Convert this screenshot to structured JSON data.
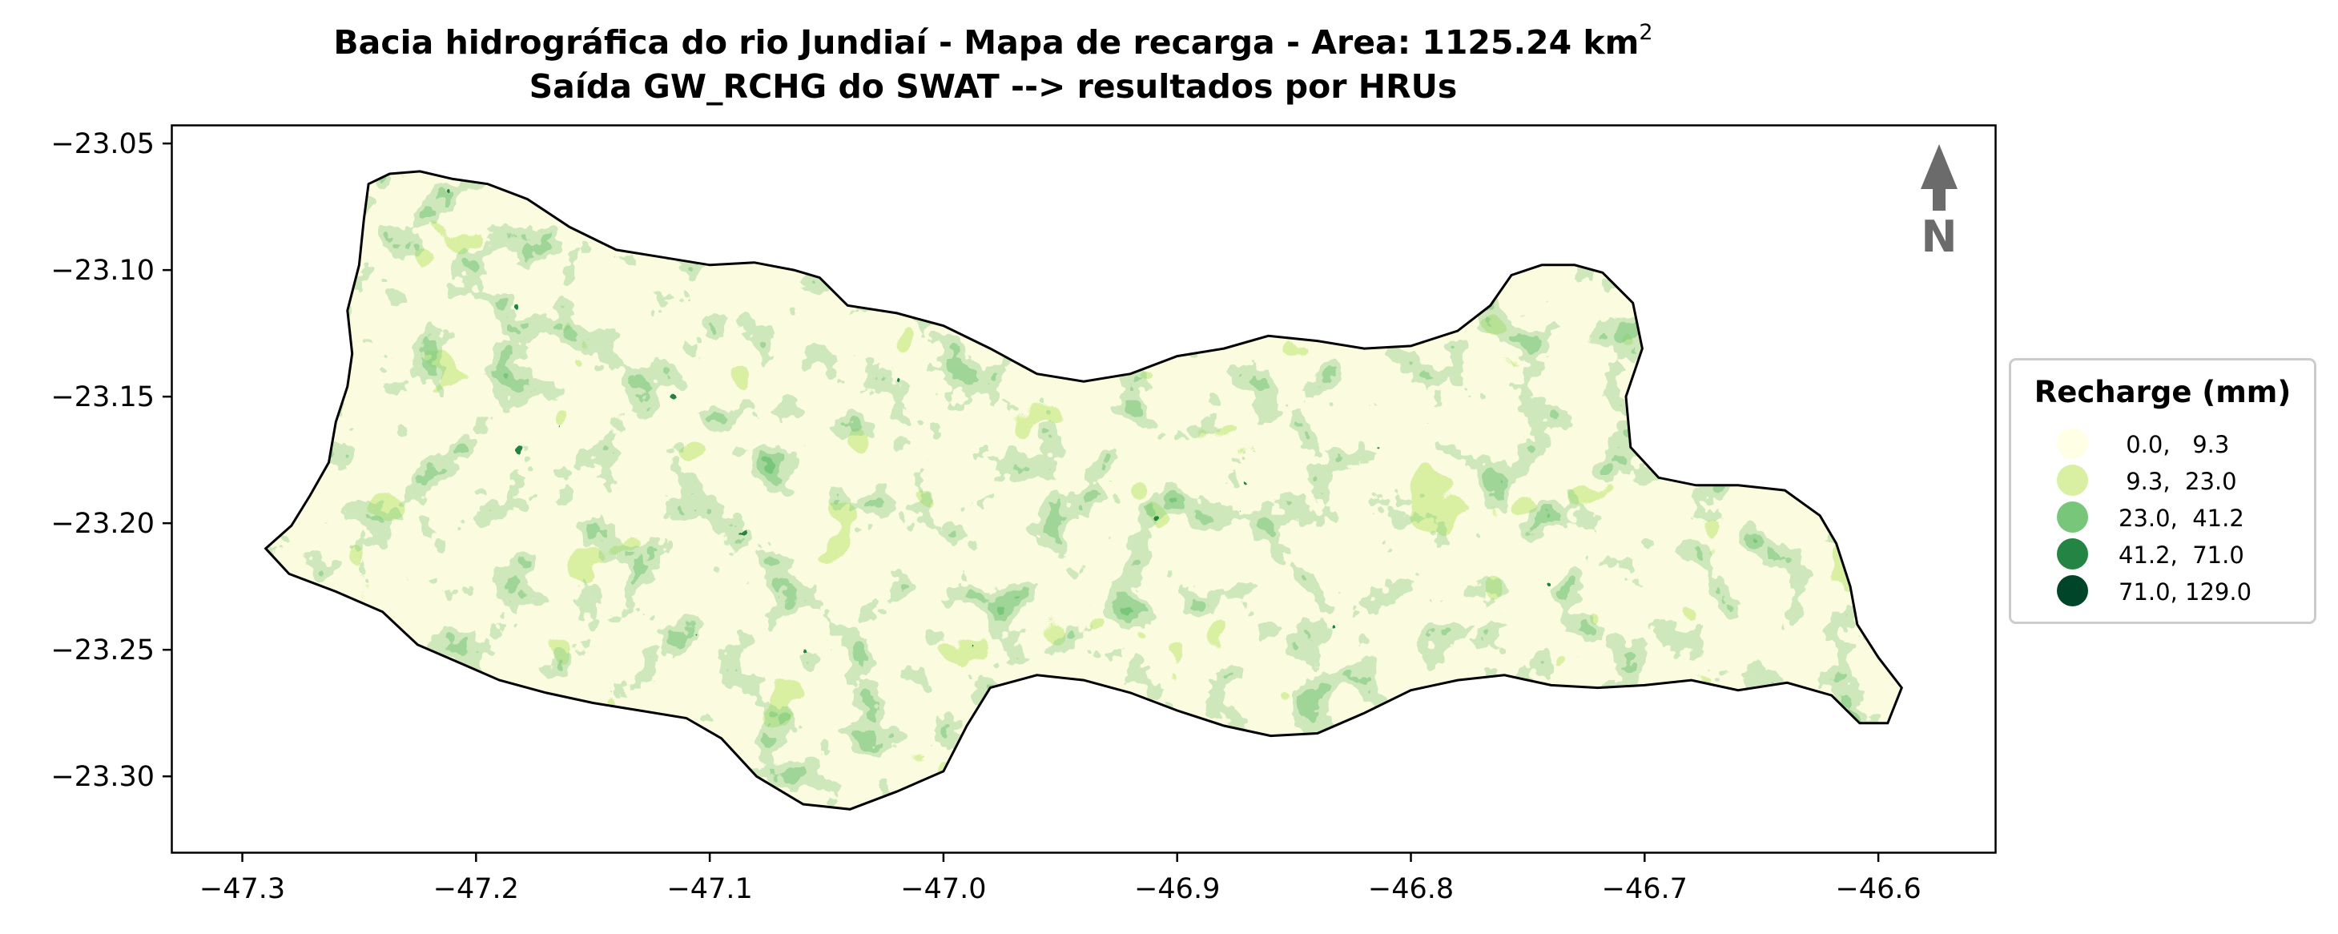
{
  "title": {
    "line1": "Bacia hidrográfica do rio Jundiaí - Mapa de recarga - Area: 1125.24 km",
    "line1_sup": "2",
    "line2": "Saída GW_RCHG do SWAT --> resultados por HRUs"
  },
  "north_arrow": {
    "label": "N",
    "color": "#6b6b6b"
  },
  "legend": {
    "title": "Recharge (mm)",
    "items": [
      {
        "label": " 0.0,   9.3",
        "color": "#ffffe5"
      },
      {
        "label": " 9.3,  23.0",
        "color": "#d9f0a3"
      },
      {
        "label": "23.0,  41.2",
        "color": "#78c679"
      },
      {
        "label": "41.2,  71.0",
        "color": "#238443"
      },
      {
        "label": "71.0, 129.0",
        "color": "#004529"
      }
    ]
  },
  "chart_data": {
    "type": "map",
    "xlim": [
      -47.33,
      -46.55
    ],
    "ylim": [
      -23.33,
      -23.043
    ],
    "x_ticks": [
      -47.3,
      -47.2,
      -47.1,
      -47.0,
      -46.9,
      -46.8,
      -46.7,
      -46.6
    ],
    "x_tick_labels": [
      "−47.3",
      "−47.2",
      "−47.1",
      "−47.0",
      "−46.9",
      "−46.8",
      "−46.7",
      "−46.6"
    ],
    "y_ticks": [
      -23.05,
      -23.1,
      -23.15,
      -23.2,
      -23.25,
      -23.3
    ],
    "y_tick_labels": [
      "−23.05",
      "−23.10",
      "−23.15",
      "−23.20",
      "−23.25",
      "−23.30"
    ],
    "colormap": "YlGn",
    "boundary": [
      [
        -47.29,
        -23.21
      ],
      [
        -47.279,
        -23.201
      ],
      [
        -47.271,
        -23.189
      ],
      [
        -47.263,
        -23.176
      ],
      [
        -47.26,
        -23.16
      ],
      [
        -47.255,
        -23.146
      ],
      [
        -47.253,
        -23.133
      ],
      [
        -47.255,
        -23.116
      ],
      [
        -47.25,
        -23.098
      ],
      [
        -47.248,
        -23.08
      ],
      [
        -47.246,
        -23.066
      ],
      [
        -47.237,
        -23.062
      ],
      [
        -47.224,
        -23.061
      ],
      [
        -47.21,
        -23.064
      ],
      [
        -47.195,
        -23.066
      ],
      [
        -47.178,
        -23.072
      ],
      [
        -47.16,
        -23.083
      ],
      [
        -47.14,
        -23.092
      ],
      [
        -47.12,
        -23.095
      ],
      [
        -47.1,
        -23.098
      ],
      [
        -47.081,
        -23.097
      ],
      [
        -47.064,
        -23.1
      ],
      [
        -47.053,
        -23.103
      ],
      [
        -47.041,
        -23.114
      ],
      [
        -47.02,
        -23.117
      ],
      [
        -47.0,
        -23.122
      ],
      [
        -46.98,
        -23.131
      ],
      [
        -46.96,
        -23.141
      ],
      [
        -46.94,
        -23.144
      ],
      [
        -46.92,
        -23.141
      ],
      [
        -46.9,
        -23.134
      ],
      [
        -46.88,
        -23.131
      ],
      [
        -46.861,
        -23.126
      ],
      [
        -46.84,
        -23.128
      ],
      [
        -46.82,
        -23.131
      ],
      [
        -46.8,
        -23.13
      ],
      [
        -46.78,
        -23.124
      ],
      [
        -46.766,
        -23.114
      ],
      [
        -46.757,
        -23.102
      ],
      [
        -46.744,
        -23.098
      ],
      [
        -46.73,
        -23.098
      ],
      [
        -46.718,
        -23.101
      ],
      [
        -46.705,
        -23.113
      ],
      [
        -46.701,
        -23.131
      ],
      [
        -46.708,
        -23.15
      ],
      [
        -46.706,
        -23.17
      ],
      [
        -46.694,
        -23.182
      ],
      [
        -46.678,
        -23.185
      ],
      [
        -46.66,
        -23.185
      ],
      [
        -46.64,
        -23.187
      ],
      [
        -46.625,
        -23.197
      ],
      [
        -46.618,
        -23.208
      ],
      [
        -46.612,
        -23.225
      ],
      [
        -46.609,
        -23.24
      ],
      [
        -46.6,
        -23.253
      ],
      [
        -46.59,
        -23.265
      ],
      [
        -46.596,
        -23.279
      ],
      [
        -46.608,
        -23.279
      ],
      [
        -46.62,
        -23.268
      ],
      [
        -46.639,
        -23.263
      ],
      [
        -46.66,
        -23.266
      ],
      [
        -46.68,
        -23.262
      ],
      [
        -46.7,
        -23.264
      ],
      [
        -46.72,
        -23.265
      ],
      [
        -46.74,
        -23.264
      ],
      [
        -46.76,
        -23.26
      ],
      [
        -46.78,
        -23.262
      ],
      [
        -46.8,
        -23.266
      ],
      [
        -46.82,
        -23.275
      ],
      [
        -46.84,
        -23.283
      ],
      [
        -46.86,
        -23.284
      ],
      [
        -46.88,
        -23.28
      ],
      [
        -46.9,
        -23.274
      ],
      [
        -46.92,
        -23.267
      ],
      [
        -46.94,
        -23.262
      ],
      [
        -46.96,
        -23.26
      ],
      [
        -46.98,
        -23.265
      ],
      [
        -46.99,
        -23.28
      ],
      [
        -47.0,
        -23.298
      ],
      [
        -47.02,
        -23.306
      ],
      [
        -47.04,
        -23.313
      ],
      [
        -47.06,
        -23.311
      ],
      [
        -47.08,
        -23.3
      ],
      [
        -47.095,
        -23.285
      ],
      [
        -47.11,
        -23.277
      ],
      [
        -47.13,
        -23.274
      ],
      [
        -47.15,
        -23.271
      ],
      [
        -47.17,
        -23.267
      ],
      [
        -47.19,
        -23.262
      ],
      [
        -47.21,
        -23.254
      ],
      [
        -47.225,
        -23.248
      ],
      [
        -47.24,
        -23.235
      ],
      [
        -47.26,
        -23.227
      ],
      [
        -47.28,
        -23.22
      ],
      [
        -47.29,
        -23.21
      ]
    ]
  }
}
